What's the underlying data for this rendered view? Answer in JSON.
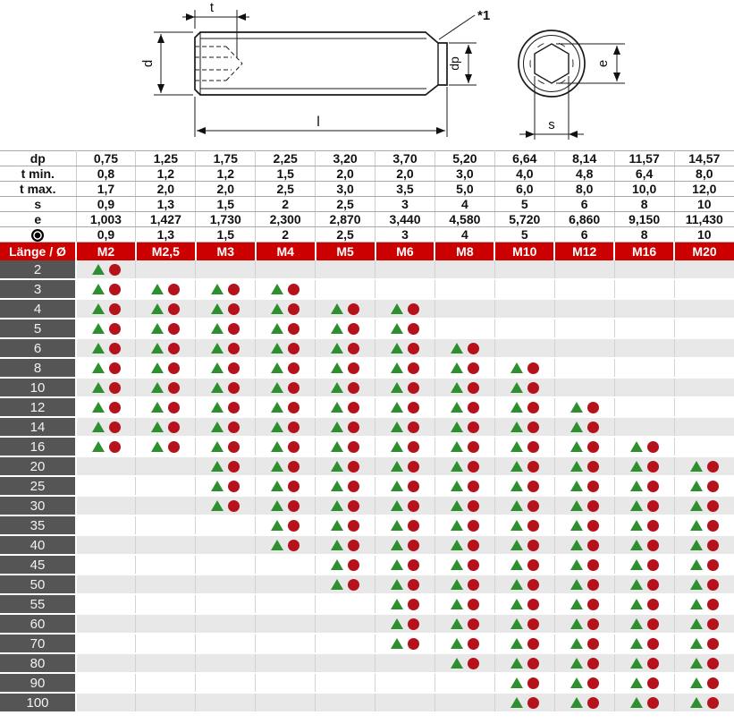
{
  "colors": {
    "header_red": "#cc0000",
    "label_gray": "#555555",
    "row_alt_gray": "#e8e8e8",
    "triangle_green": "#2e8f2e",
    "circle_red": "#b5121b"
  },
  "drawing": {
    "labels": {
      "t": "t",
      "d": "d",
      "l": "l",
      "dp": "dp",
      "note": "*1",
      "e": "e",
      "s": "s"
    }
  },
  "spec": {
    "rows": [
      {
        "label": "dp",
        "values": [
          "0,75",
          "1,25",
          "1,75",
          "2,25",
          "3,20",
          "3,70",
          "5,20",
          "6,64",
          "8,14",
          "11,57",
          "14,57"
        ]
      },
      {
        "label": "t min.",
        "values": [
          "0,8",
          "1,2",
          "1,2",
          "1,5",
          "2,0",
          "2,0",
          "3,0",
          "4,0",
          "4,8",
          "6,4",
          "8,0"
        ]
      },
      {
        "label": "t max.",
        "values": [
          "1,7",
          "2,0",
          "2,0",
          "2,5",
          "3,0",
          "3,5",
          "5,0",
          "6,0",
          "8,0",
          "10,0",
          "12,0"
        ]
      },
      {
        "label": "s",
        "values": [
          "0,9",
          "1,3",
          "1,5",
          "2",
          "2,5",
          "3",
          "4",
          "5",
          "6",
          "8",
          "10"
        ]
      },
      {
        "label": "e",
        "values": [
          "1,003",
          "1,427",
          "1,730",
          "2,300",
          "2,870",
          "3,440",
          "4,580",
          "5,720",
          "6,860",
          "9,150",
          "11,430"
        ]
      },
      {
        "label": "",
        "icon": "fisheye",
        "values": [
          "0,9",
          "1,3",
          "1,5",
          "2",
          "2,5",
          "3",
          "4",
          "5",
          "6",
          "8",
          "10"
        ]
      }
    ]
  },
  "matrix": {
    "corner_label": "Länge / Ø",
    "sizes": [
      "M2",
      "M2,5",
      "M3",
      "M4",
      "M5",
      "M6",
      "M8",
      "M10",
      "M12",
      "M16",
      "M20"
    ],
    "rows": [
      {
        "length": "2",
        "available": [
          1,
          0,
          0,
          0,
          0,
          0,
          0,
          0,
          0,
          0,
          0
        ]
      },
      {
        "length": "3",
        "available": [
          1,
          1,
          1,
          1,
          0,
          0,
          0,
          0,
          0,
          0,
          0
        ]
      },
      {
        "length": "4",
        "available": [
          1,
          1,
          1,
          1,
          1,
          1,
          0,
          0,
          0,
          0,
          0
        ]
      },
      {
        "length": "5",
        "available": [
          1,
          1,
          1,
          1,
          1,
          1,
          0,
          0,
          0,
          0,
          0
        ]
      },
      {
        "length": "6",
        "available": [
          1,
          1,
          1,
          1,
          1,
          1,
          1,
          0,
          0,
          0,
          0
        ]
      },
      {
        "length": "8",
        "available": [
          1,
          1,
          1,
          1,
          1,
          1,
          1,
          1,
          0,
          0,
          0
        ]
      },
      {
        "length": "10",
        "available": [
          1,
          1,
          1,
          1,
          1,
          1,
          1,
          1,
          0,
          0,
          0
        ]
      },
      {
        "length": "12",
        "available": [
          1,
          1,
          1,
          1,
          1,
          1,
          1,
          1,
          1,
          0,
          0
        ]
      },
      {
        "length": "14",
        "available": [
          1,
          1,
          1,
          1,
          1,
          1,
          1,
          1,
          1,
          0,
          0
        ]
      },
      {
        "length": "16",
        "available": [
          1,
          1,
          1,
          1,
          1,
          1,
          1,
          1,
          1,
          1,
          0
        ]
      },
      {
        "length": "20",
        "available": [
          0,
          0,
          1,
          1,
          1,
          1,
          1,
          1,
          1,
          1,
          1
        ]
      },
      {
        "length": "25",
        "available": [
          0,
          0,
          1,
          1,
          1,
          1,
          1,
          1,
          1,
          1,
          1
        ]
      },
      {
        "length": "30",
        "available": [
          0,
          0,
          1,
          1,
          1,
          1,
          1,
          1,
          1,
          1,
          1
        ]
      },
      {
        "length": "35",
        "available": [
          0,
          0,
          0,
          1,
          1,
          1,
          1,
          1,
          1,
          1,
          1
        ]
      },
      {
        "length": "40",
        "available": [
          0,
          0,
          0,
          1,
          1,
          1,
          1,
          1,
          1,
          1,
          1
        ]
      },
      {
        "length": "45",
        "available": [
          0,
          0,
          0,
          0,
          1,
          1,
          1,
          1,
          1,
          1,
          1
        ]
      },
      {
        "length": "50",
        "available": [
          0,
          0,
          0,
          0,
          1,
          1,
          1,
          1,
          1,
          1,
          1
        ]
      },
      {
        "length": "55",
        "available": [
          0,
          0,
          0,
          0,
          0,
          1,
          1,
          1,
          1,
          1,
          1
        ]
      },
      {
        "length": "60",
        "available": [
          0,
          0,
          0,
          0,
          0,
          1,
          1,
          1,
          1,
          1,
          1
        ]
      },
      {
        "length": "70",
        "available": [
          0,
          0,
          0,
          0,
          0,
          1,
          1,
          1,
          1,
          1,
          1
        ]
      },
      {
        "length": "80",
        "available": [
          0,
          0,
          0,
          0,
          0,
          0,
          1,
          1,
          1,
          1,
          1
        ]
      },
      {
        "length": "90",
        "available": [
          0,
          0,
          0,
          0,
          0,
          0,
          0,
          1,
          1,
          1,
          1
        ]
      },
      {
        "length": "100",
        "available": [
          0,
          0,
          0,
          0,
          0,
          0,
          0,
          1,
          1,
          1,
          1
        ]
      }
    ]
  }
}
